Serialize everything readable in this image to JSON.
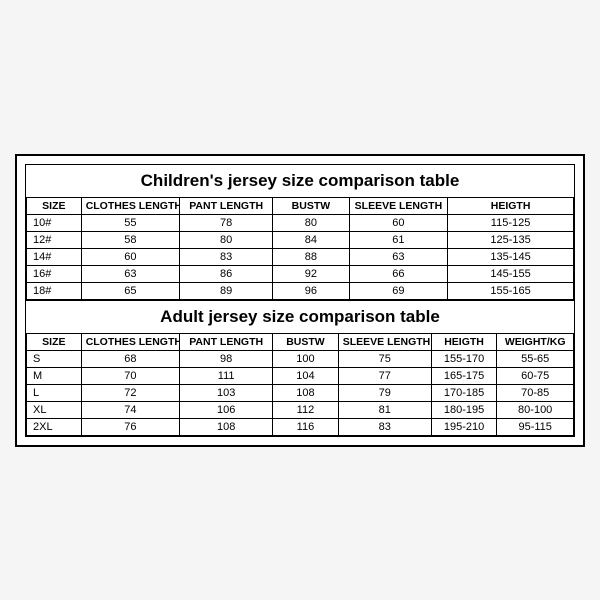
{
  "children_table": {
    "title": "Children's jersey size comparison table",
    "columns": [
      "SIZE",
      "CLOTHES LENGTH",
      "PANT LENGTH",
      "BUSTW",
      "SLEEVE LENGTH",
      "HEIGTH"
    ],
    "rows": [
      [
        "10#",
        "55",
        "78",
        "80",
        "60",
        "115-125"
      ],
      [
        "12#",
        "58",
        "80",
        "84",
        "61",
        "125-135"
      ],
      [
        "14#",
        "60",
        "83",
        "88",
        "63",
        "135-145"
      ],
      [
        "16#",
        "63",
        "86",
        "92",
        "66",
        "145-155"
      ],
      [
        "18#",
        "65",
        "89",
        "96",
        "69",
        "155-165"
      ]
    ]
  },
  "adult_table": {
    "title": "Adult jersey size comparison table",
    "columns": [
      "SIZE",
      "CLOTHES LENGTH",
      "PANT LENGTH",
      "BUSTW",
      "SLEEVE LENGTH",
      "HEIGTH",
      "WEIGHT/KG"
    ],
    "rows": [
      [
        "S",
        "68",
        "98",
        "100",
        "75",
        "155-170",
        "55-65"
      ],
      [
        "M",
        "70",
        "111",
        "104",
        "77",
        "165-175",
        "60-75"
      ],
      [
        "L",
        "72",
        "103",
        "108",
        "79",
        "170-185",
        "70-85"
      ],
      [
        "XL",
        "74",
        "106",
        "112",
        "81",
        "180-195",
        "80-100"
      ],
      [
        "2XL",
        "76",
        "108",
        "116",
        "83",
        "195-210",
        "95-115"
      ]
    ]
  },
  "style": {
    "background": "#ffffff",
    "border_color": "#000000",
    "title_fontsize": 17,
    "header_fontsize": 10.5,
    "cell_fontsize": 11,
    "font_family": "Arial"
  }
}
